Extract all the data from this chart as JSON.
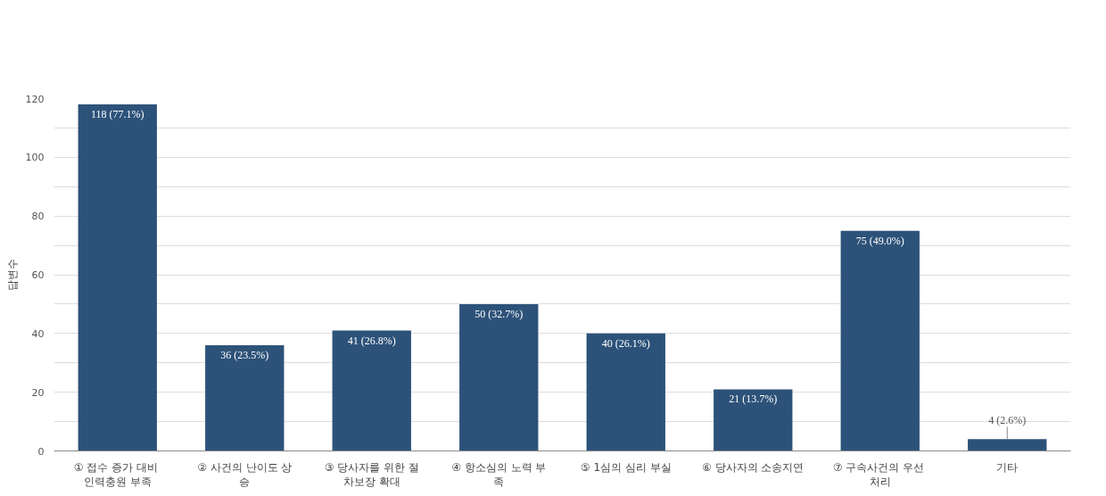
{
  "chart_data": {
    "type": "bar",
    "ylabel": "답변수",
    "categories": [
      "① 접수 증가 대비 인력충원 부족",
      "② 사건의 난이도 상승",
      "③ 당사자를 위한 절차보장 확대",
      "④ 항소심의 노력 부족",
      "⑤ 1심의 심리 부실",
      "⑥ 당사자의 소송지연",
      "⑦ 구속사건의 우선 처리",
      "기타"
    ],
    "values": [
      118,
      36,
      41,
      50,
      40,
      21,
      75,
      4
    ],
    "value_labels": [
      "118 (77.1%)",
      "36 (23.5%)",
      "41 (26.8%)",
      "50 (32.7%)",
      "40 (26.1%)",
      "21 (13.7%)",
      "75 (49.0%)",
      "4 (2.6%)"
    ],
    "color": "#2d5279",
    "ylim": [
      0,
      120
    ],
    "yticks": [
      0,
      {
        "value": 10,
        "label": null
      },
      20,
      {
        "value": 30,
        "label": null
      },
      40,
      {
        "value": 50,
        "label": null
      },
      60,
      {
        "value": 70,
        "label": null
      },
      80,
      {
        "value": 90,
        "label": null
      },
      100,
      {
        "value": 110,
        "label": null
      },
      120
    ],
    "grid": "y"
  }
}
